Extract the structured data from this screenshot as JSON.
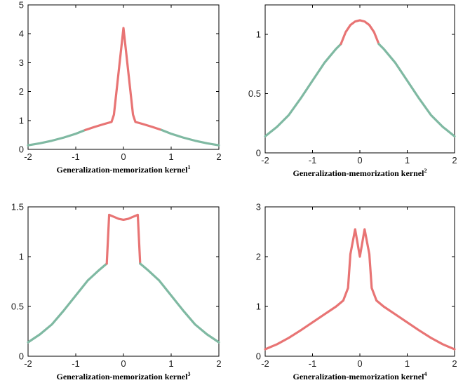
{
  "colors": {
    "memorization": "#e87474",
    "generalization": "#7fb9a2",
    "axis": "#000000"
  },
  "chart_data": [
    {
      "type": "line",
      "title": "",
      "xlabel": "Generalization-memorization kernel",
      "xlabel_sup": "1",
      "ylabel": "",
      "xlim": [
        -2,
        2
      ],
      "ylim": [
        0,
        5
      ],
      "xticks": [
        "-2",
        "-1",
        "0",
        "1",
        "2"
      ],
      "yticks": [
        "0",
        "1",
        "2",
        "3",
        "4",
        "5"
      ],
      "grid": false,
      "series": [
        {
          "color": "generalization",
          "x": [
            -2,
            -1.75,
            -1.5,
            -1.25,
            -1,
            -0.8
          ],
          "y": [
            0.14,
            0.21,
            0.3,
            0.41,
            0.54,
            0.67
          ]
        },
        {
          "color": "memorization",
          "x": [
            -0.8,
            -0.6,
            -0.4,
            -0.25,
            -0.2,
            -0.1,
            0,
            0.1,
            0.2,
            0.25,
            0.4,
            0.6,
            0.8
          ],
          "y": [
            0.67,
            0.78,
            0.88,
            0.95,
            1.2,
            2.7,
            4.2,
            2.7,
            1.2,
            0.95,
            0.88,
            0.78,
            0.67
          ]
        },
        {
          "color": "generalization",
          "x": [
            0.8,
            1,
            1.25,
            1.5,
            1.75,
            2
          ],
          "y": [
            0.67,
            0.54,
            0.41,
            0.3,
            0.21,
            0.14
          ]
        }
      ]
    },
    {
      "type": "line",
      "title": "",
      "xlabel": "Generalization-memorization kernel",
      "xlabel_sup": "2",
      "ylabel": "",
      "xlim": [
        -2,
        2
      ],
      "ylim": [
        0,
        1.25
      ],
      "xticks": [
        "-2",
        "-1",
        "0",
        "1",
        "2"
      ],
      "yticks": [
        "0",
        "0.5",
        "1"
      ],
      "grid": false,
      "series": [
        {
          "color": "generalization",
          "x": [
            -2,
            -1.75,
            -1.5,
            -1.25,
            -1,
            -0.75,
            -0.5,
            -0.4
          ],
          "y": [
            0.14,
            0.22,
            0.32,
            0.46,
            0.61,
            0.76,
            0.88,
            0.92
          ]
        },
        {
          "color": "memorization",
          "x": [
            -0.4,
            -0.3,
            -0.2,
            -0.1,
            0,
            0.1,
            0.2,
            0.3,
            0.4
          ],
          "y": [
            0.92,
            1.02,
            1.08,
            1.11,
            1.12,
            1.11,
            1.08,
            1.02,
            0.92
          ]
        },
        {
          "color": "generalization",
          "x": [
            0.4,
            0.5,
            0.75,
            1,
            1.25,
            1.5,
            1.75,
            2
          ],
          "y": [
            0.92,
            0.88,
            0.76,
            0.61,
            0.46,
            0.32,
            0.22,
            0.14
          ]
        }
      ]
    },
    {
      "type": "line",
      "title": "",
      "xlabel": "Generalization-memorization kernel",
      "xlabel_sup": "3",
      "ylabel": "",
      "xlim": [
        -2,
        2
      ],
      "ylim": [
        0,
        1.5
      ],
      "xticks": [
        "-2",
        "-1",
        "0",
        "1",
        "2"
      ],
      "yticks": [
        "0",
        "0.5",
        "1",
        "1.5"
      ],
      "grid": false,
      "series": [
        {
          "color": "generalization",
          "x": [
            -2,
            -1.75,
            -1.5,
            -1.25,
            -1,
            -0.75,
            -0.5,
            -0.4,
            -0.35
          ],
          "y": [
            0.14,
            0.22,
            0.32,
            0.46,
            0.61,
            0.76,
            0.87,
            0.91,
            0.93
          ]
        },
        {
          "color": "memorization",
          "x": [
            -0.35,
            -0.3,
            -0.2,
            -0.1,
            0,
            0.1,
            0.2,
            0.3,
            0.35
          ],
          "y": [
            0.93,
            1.42,
            1.4,
            1.38,
            1.37,
            1.38,
            1.4,
            1.42,
            0.93
          ]
        },
        {
          "color": "generalization",
          "x": [
            0.35,
            0.4,
            0.5,
            0.75,
            1,
            1.25,
            1.5,
            1.75,
            2
          ],
          "y": [
            0.93,
            0.91,
            0.87,
            0.76,
            0.61,
            0.46,
            0.32,
            0.22,
            0.14
          ]
        }
      ]
    },
    {
      "type": "line",
      "title": "",
      "xlabel": "Generalization-memorization kernel",
      "xlabel_sup": "4",
      "ylabel": "",
      "xlim": [
        -2,
        2
      ],
      "ylim": [
        0,
        3
      ],
      "xticks": [
        "-2",
        "-1",
        "0",
        "1",
        "2"
      ],
      "yticks": [
        "0",
        "1",
        "2",
        "3"
      ],
      "grid": false,
      "series": [
        {
          "color": "memorization",
          "x": [
            -2,
            -1.75,
            -1.5,
            -1.25,
            -1,
            -0.75,
            -0.5,
            -0.35,
            -0.25,
            -0.2,
            -0.1,
            0,
            0.1,
            0.2,
            0.25,
            0.35,
            0.5,
            0.75,
            1,
            1.25,
            1.5,
            1.75,
            2
          ],
          "y": [
            0.14,
            0.24,
            0.37,
            0.52,
            0.68,
            0.84,
            1.0,
            1.12,
            1.37,
            2.05,
            2.55,
            2.0,
            2.55,
            2.05,
            1.37,
            1.12,
            1.0,
            0.84,
            0.68,
            0.52,
            0.37,
            0.24,
            0.14
          ]
        }
      ]
    }
  ]
}
